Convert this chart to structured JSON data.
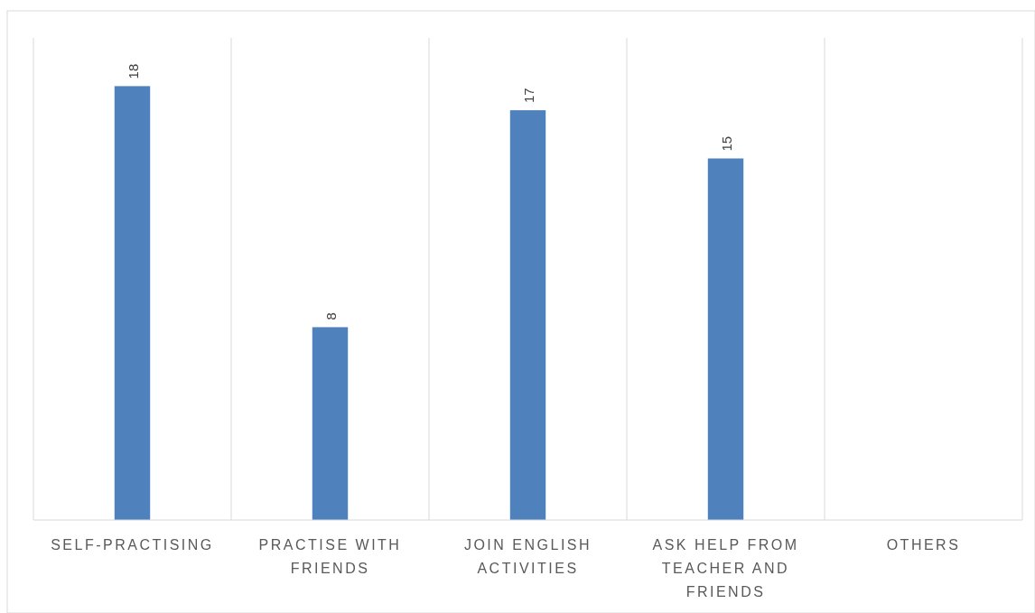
{
  "chart_data": {
    "type": "bar",
    "categories": [
      "SELF-PRACTISING",
      "PRACTISE WITH FRIENDS",
      "JOIN ENGLISH ACTIVITIES",
      "ASK HELP FROM TEACHER AND FRIENDS",
      "OTHERS"
    ],
    "values": [
      18,
      8,
      17,
      15,
      null
    ],
    "color": "#4f81bd",
    "data_labels": true,
    "ylim": [
      0,
      20
    ],
    "tick_labels": "x",
    "grid": "x"
  }
}
